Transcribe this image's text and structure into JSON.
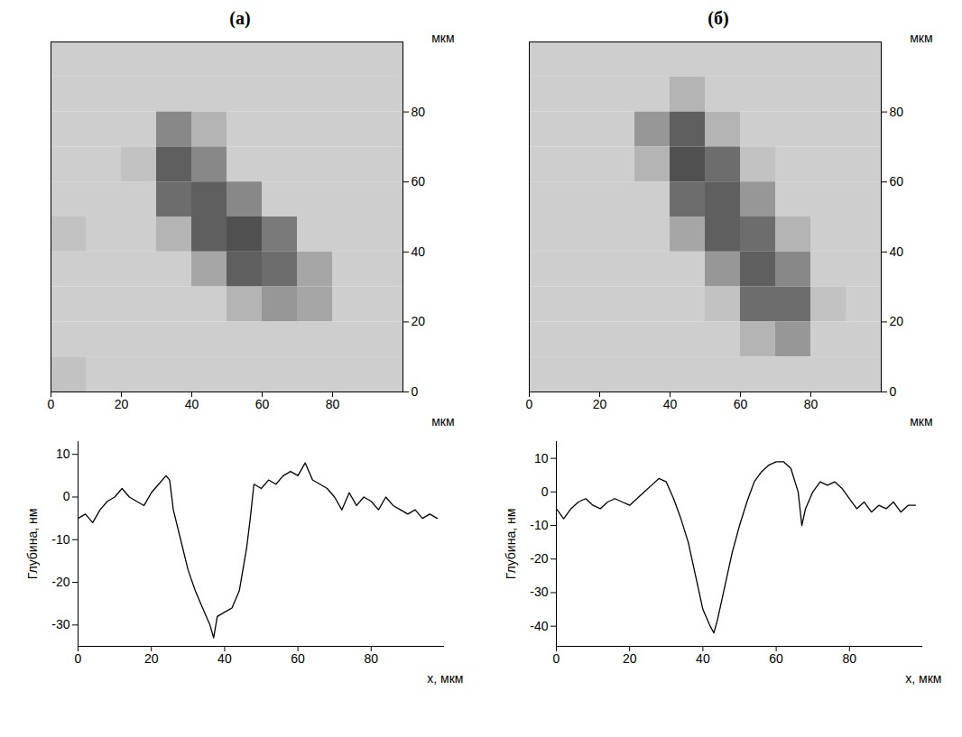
{
  "chart_data": [
    {
      "type": "heatmap",
      "title": "(а)",
      "x_label": "мкм",
      "y_label": "мкм",
      "xlim": [
        0,
        100
      ],
      "ylim": [
        0,
        100
      ],
      "xticks": [
        0,
        20,
        40,
        60,
        80
      ],
      "yticks": [
        0,
        20,
        40,
        60,
        80
      ],
      "cells": [
        [
          30,
          30,
          30,
          30,
          30,
          30,
          30,
          30,
          30,
          30
        ],
        [
          30,
          30,
          30,
          30,
          30,
          30,
          30,
          30,
          30,
          30
        ],
        [
          30,
          30,
          30,
          55,
          40,
          30,
          30,
          30,
          30,
          30
        ],
        [
          30,
          30,
          35,
          70,
          55,
          30,
          30,
          30,
          30,
          30
        ],
        [
          30,
          30,
          30,
          65,
          70,
          55,
          30,
          30,
          30,
          30
        ],
        [
          35,
          30,
          30,
          40,
          70,
          75,
          60,
          30,
          30,
          30
        ],
        [
          30,
          30,
          30,
          30,
          45,
          70,
          65,
          45,
          30,
          30
        ],
        [
          30,
          30,
          30,
          30,
          30,
          40,
          50,
          45,
          30,
          30
        ],
        [
          30,
          30,
          30,
          30,
          30,
          30,
          30,
          30,
          30,
          30
        ],
        [
          35,
          30,
          30,
          30,
          30,
          30,
          30,
          30,
          30,
          30
        ]
      ]
    },
    {
      "type": "line",
      "x_label": "x, мкм",
      "y_label": "Глубина, нм",
      "color": "#000000",
      "xlim": [
        0,
        100
      ],
      "ylim": [
        -35,
        13
      ],
      "xticks": [
        0,
        20,
        40,
        60,
        80
      ],
      "yticks": [
        -30,
        -20,
        -10,
        0,
        10
      ],
      "x": [
        0,
        2,
        4,
        6,
        8,
        10,
        12,
        14,
        16,
        18,
        20,
        22,
        24,
        25,
        26,
        28,
        30,
        32,
        34,
        36,
        37,
        38,
        40,
        42,
        44,
        46,
        47,
        48,
        50,
        52,
        54,
        56,
        58,
        60,
        62,
        64,
        66,
        68,
        70,
        72,
        74,
        76,
        78,
        80,
        82,
        84,
        86,
        88,
        90,
        92,
        94,
        96,
        98
      ],
      "values": [
        -5,
        -4,
        -6,
        -3,
        -1,
        0,
        2,
        0,
        -1,
        -2,
        1,
        3,
        5,
        4,
        -3,
        -10,
        -17,
        -22,
        -26,
        -30,
        -33,
        -28,
        -27,
        -26,
        -22,
        -12,
        -5,
        3,
        2,
        4,
        3,
        5,
        6,
        5,
        8,
        4,
        3,
        2,
        0,
        -3,
        1,
        -2,
        0,
        -1,
        -3,
        0,
        -2,
        -3,
        -4,
        -3,
        -5,
        -4,
        -5
      ]
    },
    {
      "type": "heatmap",
      "title": "(б)",
      "x_label": "мкм",
      "y_label": "мкм",
      "xlim": [
        0,
        100
      ],
      "ylim": [
        0,
        100
      ],
      "xticks": [
        0,
        20,
        40,
        60,
        80
      ],
      "yticks": [
        0,
        20,
        40,
        60,
        80
      ],
      "cells": [
        [
          30,
          30,
          30,
          30,
          30,
          30,
          30,
          30,
          30,
          30
        ],
        [
          30,
          30,
          30,
          30,
          40,
          30,
          30,
          30,
          30,
          30
        ],
        [
          30,
          30,
          30,
          50,
          70,
          40,
          30,
          30,
          30,
          30
        ],
        [
          30,
          30,
          30,
          40,
          75,
          65,
          35,
          30,
          30,
          30
        ],
        [
          30,
          30,
          30,
          30,
          65,
          70,
          50,
          30,
          30,
          30
        ],
        [
          30,
          30,
          30,
          30,
          45,
          70,
          65,
          40,
          30,
          30
        ],
        [
          30,
          30,
          30,
          30,
          30,
          50,
          70,
          55,
          30,
          30
        ],
        [
          30,
          30,
          30,
          30,
          30,
          35,
          65,
          65,
          35,
          30
        ],
        [
          30,
          30,
          30,
          30,
          30,
          30,
          40,
          50,
          30,
          30
        ],
        [
          30,
          30,
          30,
          30,
          30,
          30,
          30,
          30,
          30,
          30
        ]
      ]
    },
    {
      "type": "line",
      "x_label": "x, мкм",
      "y_label": "Глубина, нм",
      "color": "#000000",
      "xlim": [
        0,
        100
      ],
      "ylim": [
        -46,
        15
      ],
      "xticks": [
        0,
        20,
        40,
        60,
        80
      ],
      "yticks": [
        -40,
        -30,
        -20,
        -10,
        0,
        10
      ],
      "x": [
        0,
        2,
        4,
        6,
        8,
        10,
        12,
        14,
        16,
        18,
        20,
        22,
        24,
        26,
        28,
        30,
        32,
        34,
        36,
        38,
        40,
        42,
        43,
        44,
        46,
        48,
        50,
        52,
        54,
        56,
        58,
        60,
        62,
        64,
        66,
        67,
        68,
        70,
        72,
        74,
        76,
        78,
        80,
        82,
        84,
        86,
        88,
        90,
        92,
        94,
        96,
        98
      ],
      "values": [
        -5,
        -8,
        -5,
        -3,
        -2,
        -4,
        -5,
        -3,
        -2,
        -3,
        -4,
        -2,
        0,
        2,
        4,
        3,
        -2,
        -8,
        -15,
        -25,
        -35,
        -40,
        -42,
        -38,
        -28,
        -18,
        -10,
        -3,
        3,
        6,
        8,
        9,
        9,
        7,
        0,
        -10,
        -5,
        0,
        3,
        2,
        3,
        1,
        -2,
        -5,
        -3,
        -6,
        -4,
        -5,
        -3,
        -6,
        -4,
        -4
      ]
    }
  ]
}
